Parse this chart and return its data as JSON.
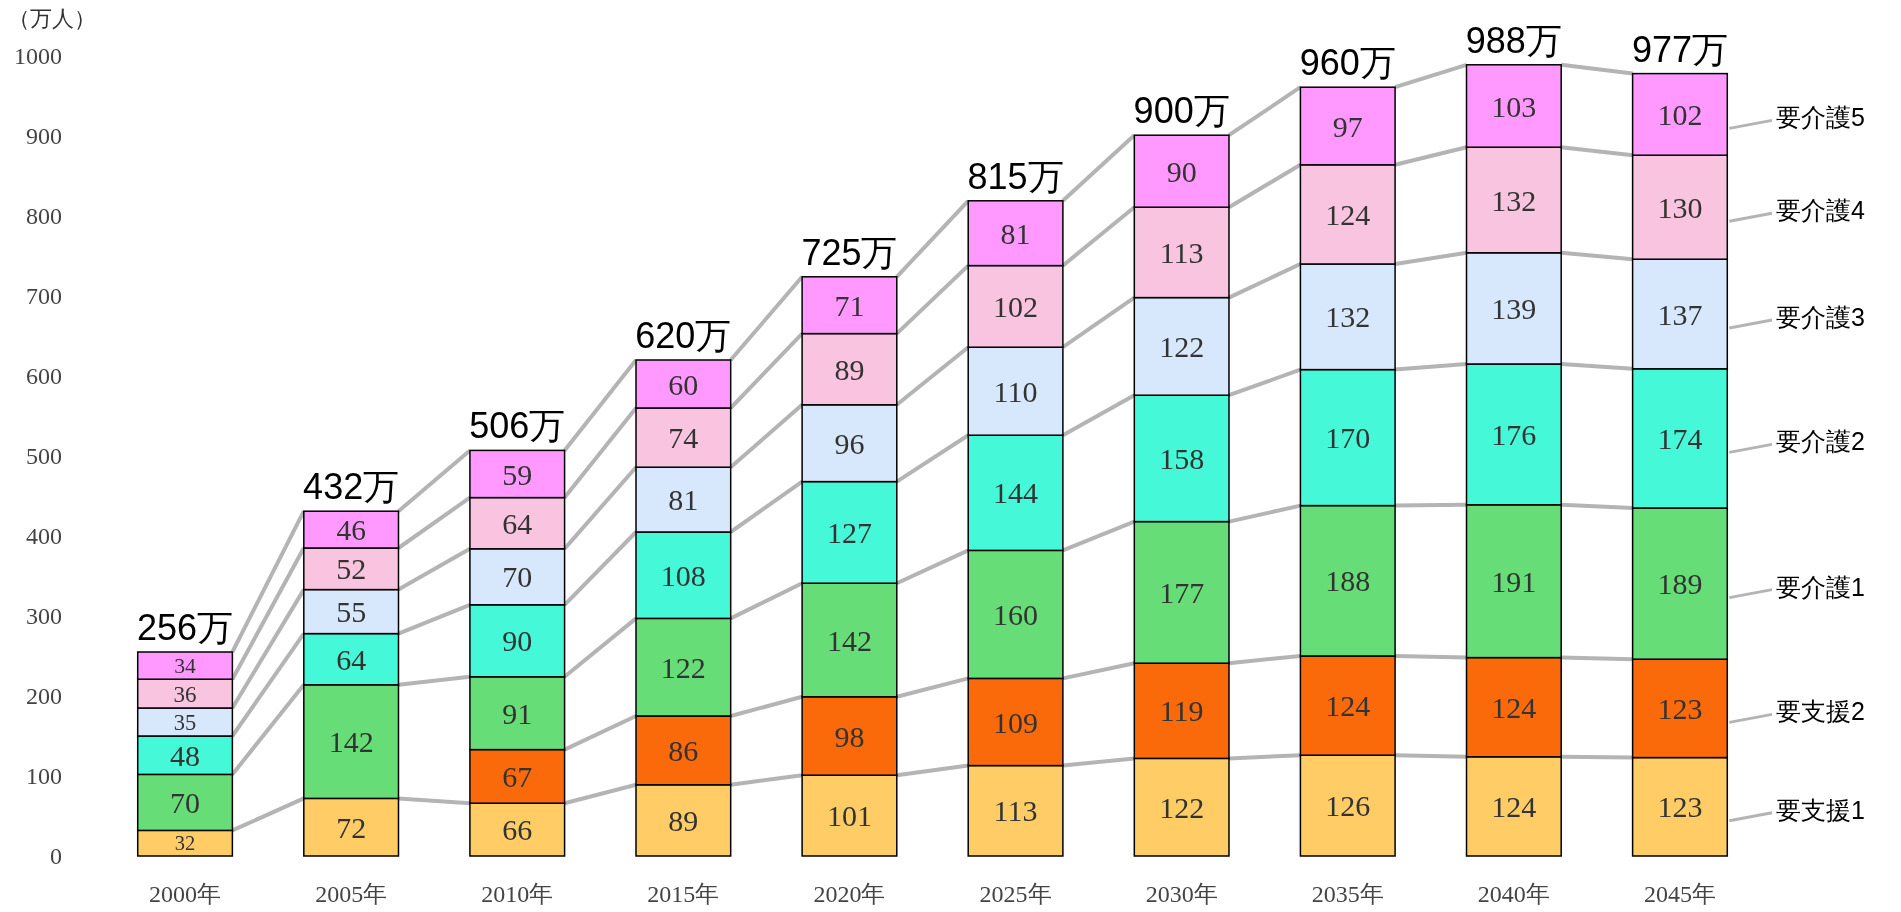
{
  "chart_data": {
    "type": "bar",
    "stacked": true,
    "ylabel": "（万人）",
    "categories": [
      "2000年",
      "2005年",
      "2010年",
      "2015年",
      "2020年",
      "2025年",
      "2030年",
      "2035年",
      "2040年",
      "2045年"
    ],
    "ylim": [
      0,
      1000
    ],
    "yticks": [
      0,
      100,
      200,
      300,
      400,
      500,
      600,
      700,
      800,
      900,
      1000
    ],
    "grid": false,
    "legend": "right",
    "data_labels": true,
    "totals": [
      "256万",
      "432万",
      "506万",
      "620万",
      "725万",
      "815万",
      "900万",
      "960万",
      "988万",
      "977万"
    ],
    "series": [
      {
        "name": "要支援1",
        "color": "#ffcc66",
        "values": [
          32,
          72,
          66,
          89,
          101,
          113,
          122,
          126,
          124,
          123
        ]
      },
      {
        "name": "要支援2",
        "color": "#fa6a0a",
        "values": [
          null,
          null,
          67,
          86,
          98,
          109,
          119,
          124,
          124,
          123
        ]
      },
      {
        "name": "要介護1",
        "color": "#66dd77",
        "values": [
          70,
          142,
          91,
          122,
          142,
          160,
          177,
          188,
          191,
          189
        ]
      },
      {
        "name": "要介護2",
        "color": "#44f8d8",
        "values": [
          48,
          64,
          90,
          108,
          127,
          144,
          158,
          170,
          176,
          174
        ]
      },
      {
        "name": "要介護3",
        "color": "#d8e8fc",
        "values": [
          35,
          55,
          70,
          81,
          96,
          110,
          122,
          132,
          139,
          137
        ]
      },
      {
        "name": "要介護4",
        "color": "#f8c4e0",
        "values": [
          36,
          52,
          64,
          74,
          89,
          102,
          113,
          124,
          132,
          130
        ]
      },
      {
        "name": "要介護5",
        "color": "#ff99ff",
        "values": [
          34,
          46,
          59,
          60,
          71,
          81,
          90,
          97,
          103,
          102
        ]
      }
    ]
  }
}
